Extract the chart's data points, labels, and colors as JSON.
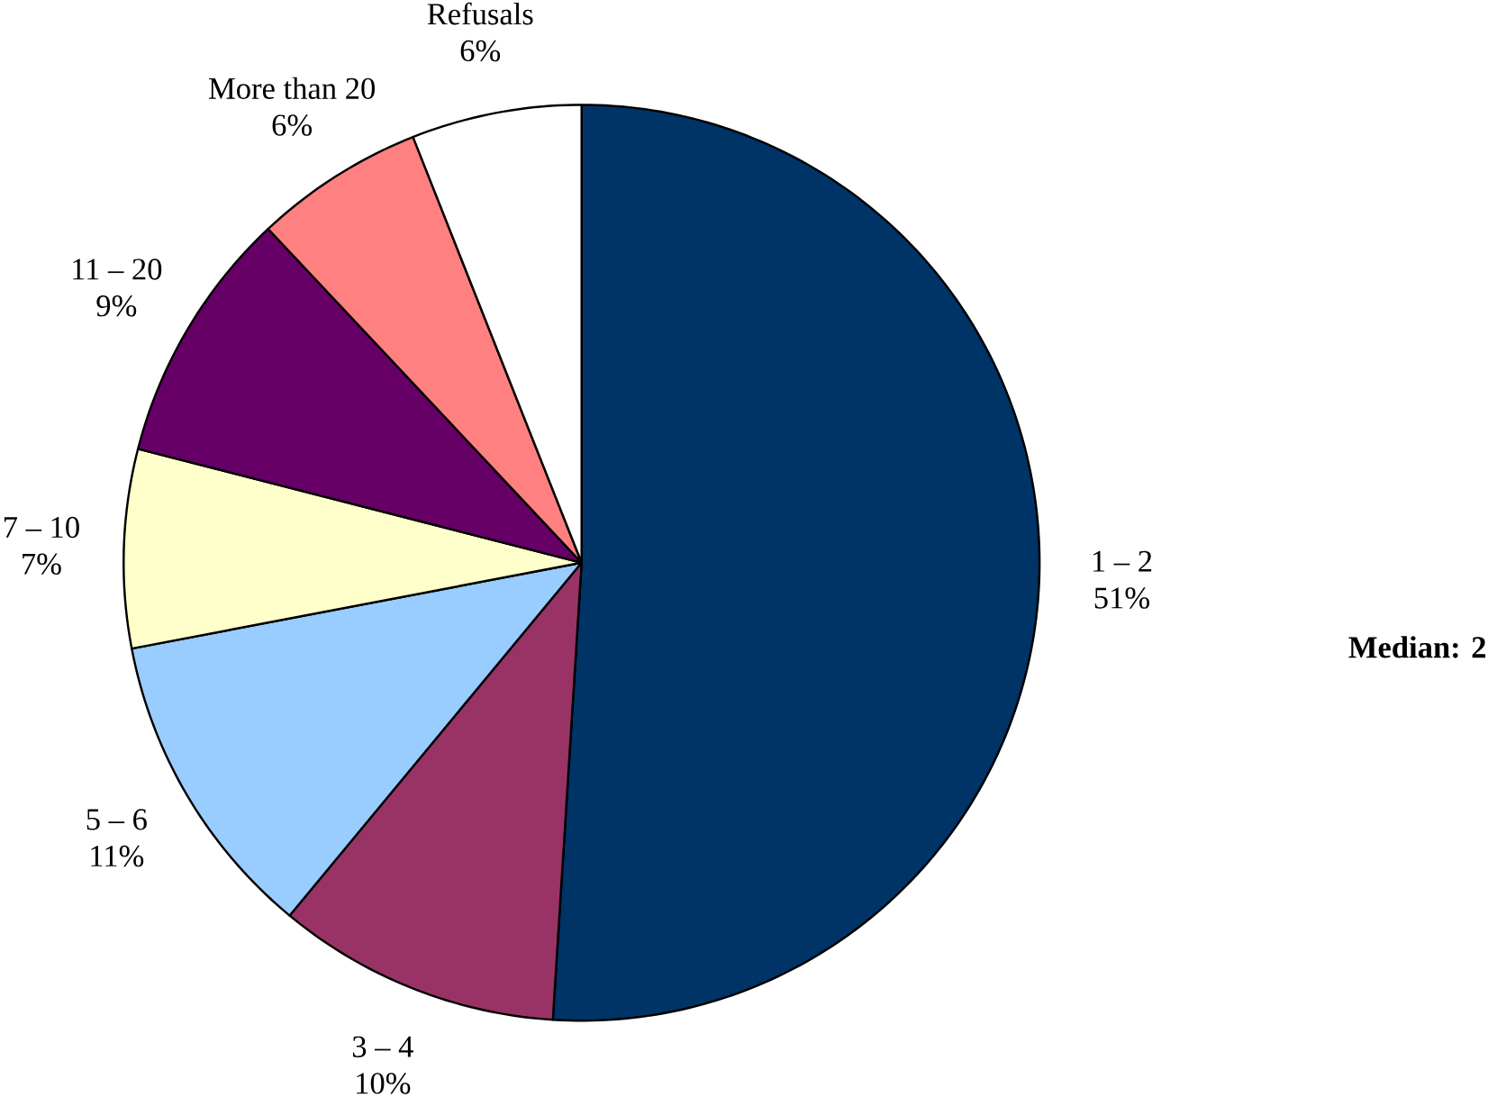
{
  "chart_data": {
    "type": "pie",
    "categories": [
      "1 – 2",
      "3 – 4",
      "5 – 6",
      "7 – 10",
      "11 – 20",
      "More than 20",
      "Refusals"
    ],
    "values": [
      51,
      10,
      11,
      7,
      9,
      6,
      6
    ],
    "value_labels": [
      "51%",
      "10%",
      "11%",
      "7%",
      "9%",
      "6%",
      "6%"
    ],
    "colors": [
      "#003366",
      "#993366",
      "#99ccff",
      "#ffffcc",
      "#660066",
      "#ff8080",
      "#ffffff"
    ],
    "annotations": [
      "Median: 2"
    ]
  }
}
